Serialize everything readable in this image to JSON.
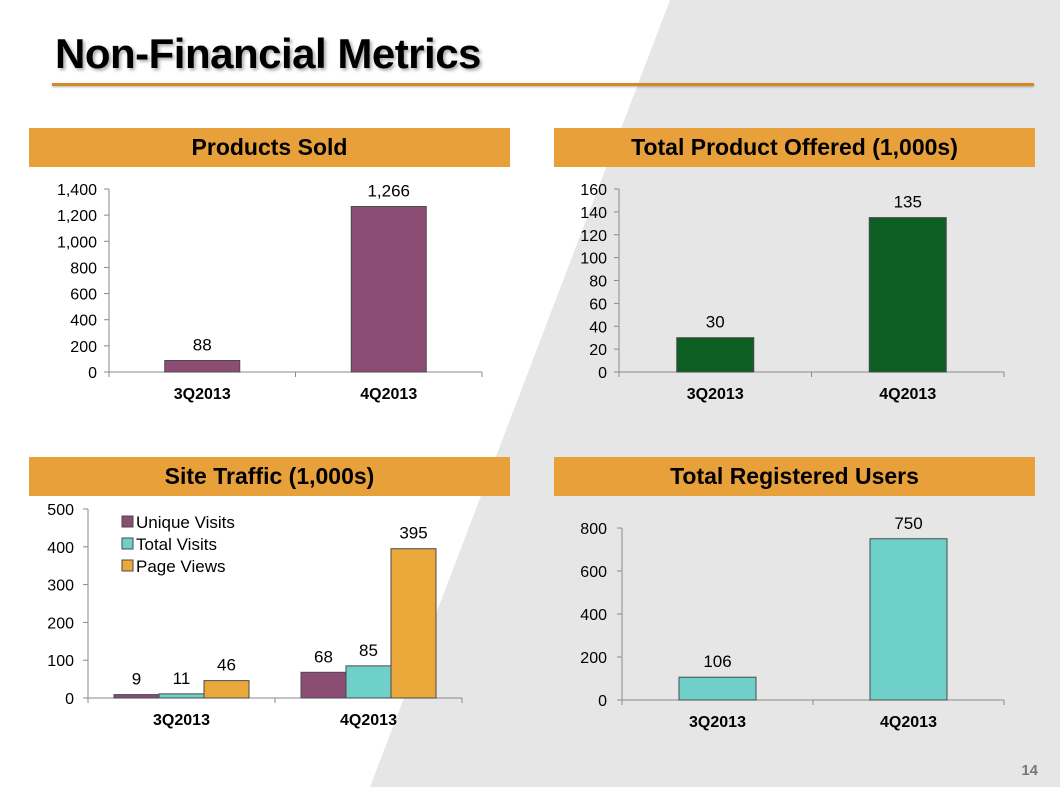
{
  "slide": {
    "title": "Non-Financial Metrics",
    "page_number": "14",
    "accent_color": "#e8a03a",
    "rule_color": "#d08a28"
  },
  "chart_data": [
    {
      "id": "products",
      "type": "bar",
      "title": "Products Sold",
      "categories": [
        "3Q2013",
        "4Q2013"
      ],
      "series": [
        {
          "name": "Products Sold",
          "values": [
            88,
            1266
          ],
          "labels": [
            "88",
            "1,266"
          ],
          "color": "#8c4d75"
        }
      ],
      "ylim": [
        0,
        1400
      ],
      "yticks": [
        0,
        200,
        400,
        600,
        800,
        1000,
        1200,
        1400
      ],
      "ytick_labels": [
        "0",
        "200",
        "400",
        "600",
        "800",
        "1,000",
        "1,200",
        "1,400"
      ],
      "xlabel": "",
      "ylabel": "",
      "legend": "none"
    },
    {
      "id": "offered",
      "type": "bar",
      "title": "Total Product Offered (1,000s)",
      "categories": [
        "3Q2013",
        "4Q2013"
      ],
      "series": [
        {
          "name": "Total Product Offered",
          "values": [
            30,
            135
          ],
          "labels": [
            "30",
            "135"
          ],
          "color": "#0d5e22"
        }
      ],
      "ylim": [
        0,
        160
      ],
      "yticks": [
        0,
        20,
        40,
        60,
        80,
        100,
        120,
        140,
        160
      ],
      "ytick_labels": [
        "0",
        "20",
        "40",
        "60",
        "80",
        "100",
        "120",
        "140",
        "160"
      ],
      "xlabel": "",
      "ylabel": "",
      "legend": "none"
    },
    {
      "id": "traffic",
      "type": "bar",
      "title": "Site Traffic (1,000s)",
      "categories": [
        "3Q2013",
        "4Q2013"
      ],
      "series": [
        {
          "name": "Unique Visits",
          "values": [
            9,
            68
          ],
          "labels": [
            "9",
            "68"
          ],
          "color": "#8c4d75"
        },
        {
          "name": "Total Visits",
          "values": [
            11,
            85
          ],
          "labels": [
            "11",
            "85"
          ],
          "color": "#6fd0c9"
        },
        {
          "name": "Page Views",
          "values": [
            46,
            395
          ],
          "labels": [
            "46",
            "395"
          ],
          "color": "#eba83b"
        }
      ],
      "ylim": [
        0,
        500
      ],
      "yticks": [
        0,
        100,
        200,
        300,
        400,
        500
      ],
      "ytick_labels": [
        "0",
        "100",
        "200",
        "300",
        "400",
        "500"
      ],
      "xlabel": "",
      "ylabel": "",
      "legend": "top-left"
    },
    {
      "id": "users",
      "type": "bar",
      "title": "Total Registered Users",
      "categories": [
        "3Q2013",
        "4Q2013"
      ],
      "series": [
        {
          "name": "Total Registered Users",
          "values": [
            106,
            750
          ],
          "labels": [
            "106",
            "750"
          ],
          "color": "#6fd0c9"
        }
      ],
      "ylim": [
        0,
        800
      ],
      "yticks": [
        0,
        200,
        400,
        600,
        800
      ],
      "ytick_labels": [
        "0",
        "200",
        "400",
        "600",
        "800"
      ],
      "xlabel": "",
      "ylabel": "",
      "legend": "none"
    }
  ]
}
